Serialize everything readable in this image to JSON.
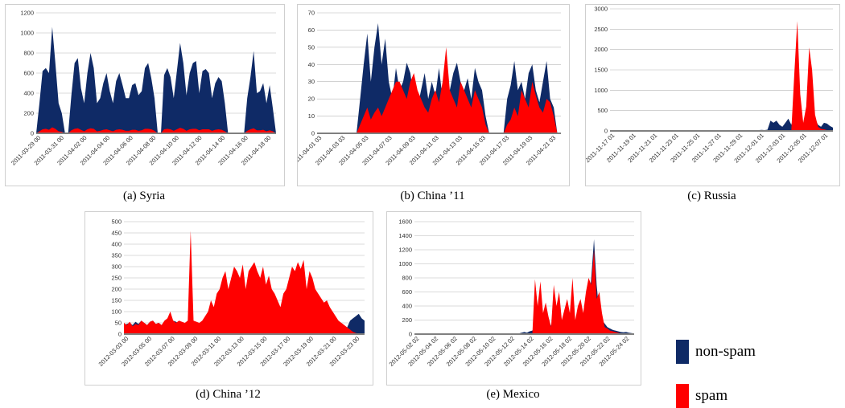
{
  "colors": {
    "non_spam": "#0f2a66",
    "spam": "#ff0000",
    "grid": "#b8b8b8",
    "axis": "#808080"
  },
  "legend": {
    "non_spam_label": "non-spam",
    "spam_label": "spam"
  },
  "chart_data": [
    {
      "type": "area",
      "caption": "(a)  Syria",
      "ylim": [
        0,
        1200
      ],
      "yticks": [
        "0",
        "200",
        "400",
        "600",
        "800",
        "1000",
        "1200"
      ],
      "xticks": [
        "2011-03-29 00",
        "2011-03-31 00",
        "2011-04-02 00",
        "2011-04-04 00",
        "2011-04-06 00",
        "2011-04-08 00",
        "2011-04-10 00",
        "2011-04-12 00",
        "2011-04-14 00",
        "2011-04-16 00",
        "2011-04-18 00"
      ],
      "series": [
        {
          "name": "non-spam",
          "values": [
            0,
            300,
            620,
            650,
            600,
            1060,
            700,
            300,
            200,
            0,
            0,
            380,
            700,
            750,
            450,
            300,
            600,
            800,
            650,
            300,
            350,
            500,
            600,
            420,
            300,
            520,
            600,
            480,
            350,
            350,
            480,
            500,
            380,
            420,
            650,
            700,
            550,
            350,
            0,
            0,
            580,
            650,
            560,
            350,
            620,
            900,
            700,
            380,
            600,
            700,
            720,
            400,
            620,
            640,
            600,
            350,
            500,
            560,
            520,
            300,
            0,
            0,
            0,
            0,
            0,
            0,
            350,
            560,
            820,
            400,
            420,
            500,
            300,
            480,
            250,
            0
          ]
        },
        {
          "name": "spam",
          "values": [
            0,
            20,
            40,
            45,
            35,
            60,
            45,
            20,
            15,
            0,
            0,
            30,
            45,
            50,
            35,
            20,
            40,
            50,
            45,
            20,
            25,
            35,
            40,
            30,
            20,
            35,
            40,
            35,
            25,
            25,
            35,
            35,
            25,
            30,
            45,
            45,
            40,
            25,
            0,
            0,
            40,
            45,
            40,
            25,
            40,
            55,
            45,
            25,
            40,
            45,
            45,
            30,
            40,
            40,
            40,
            25,
            35,
            40,
            35,
            20,
            0,
            0,
            0,
            0,
            0,
            0,
            25,
            40,
            50,
            30,
            30,
            35,
            20,
            30,
            20,
            0
          ]
        }
      ]
    },
    {
      "type": "area",
      "caption": "(b)  China ’11",
      "ylim": [
        0,
        70
      ],
      "yticks": [
        "0",
        "10",
        "20",
        "30",
        "40",
        "50",
        "60",
        "70"
      ],
      "xticks": [
        "2011-04-01 03",
        "2011-04-03 03",
        "2011-04-05 03",
        "2011-04-07 03",
        "2011-04-09 03",
        "2011-04-11 03",
        "2011-04-13 03",
        "2011-04-15 03",
        "2011-04-17 03",
        "2011-04-19 03",
        "2011-04-21 03"
      ],
      "series": [
        {
          "name": "non-spam",
          "values": [
            0,
            0,
            0,
            0,
            0,
            0,
            0,
            0,
            0,
            0,
            0,
            0,
            20,
            40,
            58,
            30,
            50,
            64,
            40,
            55,
            30,
            20,
            38,
            25,
            30,
            41,
            35,
            20,
            15,
            25,
            35,
            20,
            30,
            22,
            38,
            20,
            32,
            25,
            35,
            41,
            30,
            25,
            32,
            20,
            38,
            30,
            25,
            10,
            0,
            0,
            0,
            0,
            0,
            20,
            28,
            42,
            25,
            30,
            20,
            35,
            40,
            25,
            18,
            30,
            42,
            20,
            15,
            0,
            0
          ]
        },
        {
          "name": "spam",
          "values": [
            0,
            0,
            0,
            0,
            0,
            0,
            0,
            0,
            0,
            0,
            0,
            0,
            5,
            10,
            15,
            8,
            12,
            15,
            10,
            15,
            20,
            25,
            30,
            30,
            25,
            20,
            30,
            35,
            25,
            20,
            15,
            12,
            20,
            25,
            18,
            30,
            50,
            25,
            20,
            15,
            30,
            25,
            20,
            15,
            25,
            20,
            15,
            5,
            0,
            0,
            0,
            0,
            0,
            5,
            8,
            15,
            10,
            25,
            20,
            15,
            30,
            22,
            15,
            12,
            20,
            18,
            10,
            0,
            0
          ]
        }
      ]
    },
    {
      "type": "area",
      "caption": "(c)  Russia",
      "ylim": [
        0,
        3000
      ],
      "yticks": [
        "0",
        "500",
        "1000",
        "1500",
        "2000",
        "2500",
        "3000"
      ],
      "xticks": [
        "2011-11-17 01",
        "2011-11-19 01",
        "2011-11-21 01",
        "2011-11-23 01",
        "2011-11-25 01",
        "2011-11-27 01",
        "2011-11-29 01",
        "2011-12-01 01",
        "2011-12-03 01",
        "2011-12-05 01",
        "2011-12-07 01"
      ],
      "series": [
        {
          "name": "non-spam",
          "values": [
            10,
            10,
            10,
            10,
            10,
            10,
            10,
            10,
            10,
            10,
            10,
            10,
            10,
            10,
            10,
            10,
            10,
            10,
            10,
            10,
            10,
            10,
            10,
            10,
            10,
            10,
            10,
            10,
            10,
            10,
            10,
            10,
            10,
            10,
            10,
            10,
            10,
            10,
            10,
            10,
            10,
            10,
            10,
            10,
            10,
            10,
            15,
            20,
            15,
            15,
            20,
            25,
            20,
            30,
            250,
            200,
            250,
            150,
            100,
            200,
            300,
            150,
            400,
            800,
            300,
            150,
            200,
            1200,
            400,
            300,
            150,
            100,
            200,
            180,
            120,
            80
          ]
        },
        {
          "name": "spam",
          "values": [
            0,
            0,
            0,
            0,
            0,
            0,
            0,
            0,
            0,
            0,
            0,
            0,
            0,
            0,
            0,
            0,
            0,
            0,
            0,
            0,
            0,
            0,
            0,
            0,
            0,
            0,
            0,
            0,
            0,
            0,
            0,
            0,
            0,
            0,
            0,
            0,
            0,
            0,
            0,
            0,
            0,
            0,
            0,
            0,
            0,
            0,
            0,
            0,
            0,
            0,
            0,
            0,
            0,
            0,
            0,
            0,
            0,
            0,
            0,
            0,
            0,
            0,
            1400,
            2700,
            900,
            200,
            600,
            2050,
            1500,
            400,
            100,
            50,
            40,
            20,
            10,
            5
          ]
        }
      ]
    },
    {
      "type": "area",
      "caption": "(d)  China ’12",
      "ylim": [
        0,
        500
      ],
      "yticks": [
        "0",
        "50",
        "100",
        "150",
        "200",
        "250",
        "300",
        "350",
        "400",
        "450",
        "500"
      ],
      "xticks": [
        "2012-03-03 00",
        "2012-03-05 00",
        "2012-03-07 00",
        "2012-03-09 00",
        "2012-03-11 00",
        "2012-03-13 00",
        "2012-03-15 00",
        "2012-03-17 00",
        "2012-03-19 00",
        "2012-03-21 00",
        "2012-03-23 00"
      ],
      "series": [
        {
          "name": "non-spam",
          "values": [
            40,
            45,
            50,
            40,
            55,
            45,
            60,
            50,
            40,
            55,
            60,
            45,
            50,
            40,
            55,
            45,
            50,
            60,
            55,
            45,
            50,
            40,
            55,
            60,
            45,
            50,
            40,
            35,
            45,
            50,
            55,
            40,
            45,
            60,
            50,
            45,
            55,
            50,
            45,
            40,
            35,
            30,
            45,
            50,
            40,
            35,
            45,
            40,
            50,
            45,
            55,
            40,
            30,
            20,
            25,
            50,
            60,
            50,
            55,
            45,
            40,
            50,
            60,
            55,
            45,
            50,
            30,
            40,
            55,
            60,
            65,
            70,
            75,
            50,
            60,
            40,
            20,
            30,
            60,
            70,
            80,
            90,
            70,
            60
          ]
        },
        {
          "name": "spam",
          "values": [
            50,
            40,
            55,
            35,
            45,
            40,
            60,
            50,
            40,
            55,
            60,
            45,
            50,
            40,
            60,
            70,
            100,
            60,
            50,
            60,
            55,
            50,
            60,
            460,
            60,
            55,
            50,
            60,
            80,
            100,
            150,
            120,
            180,
            200,
            250,
            280,
            200,
            250,
            300,
            280,
            250,
            310,
            200,
            280,
            300,
            320,
            280,
            250,
            300,
            220,
            260,
            200,
            180,
            150,
            120,
            180,
            200,
            250,
            300,
            280,
            320,
            290,
            330,
            200,
            280,
            250,
            200,
            180,
            160,
            140,
            150,
            120,
            100,
            80,
            60,
            50,
            40,
            30,
            20,
            10,
            5,
            0,
            0,
            0
          ]
        }
      ]
    },
    {
      "type": "area",
      "caption": "(e)  Mexico",
      "ylim": [
        0,
        1600
      ],
      "yticks": [
        "0",
        "200",
        "400",
        "600",
        "800",
        "1000",
        "1200",
        "1400",
        "1600"
      ],
      "xticks": [
        "2012-05-02 02",
        "2012-05-04 02",
        "2012-05-06 02",
        "2012-05-08 02",
        "2012-05-10 02",
        "2012-05-12 02",
        "2012-05-14 02",
        "2012-05-16 02",
        "2012-05-18 02",
        "2012-05-20 02",
        "2012-05-22 02",
        "2012-05-24 02"
      ],
      "series": [
        {
          "name": "non-spam",
          "values": [
            10,
            10,
            10,
            10,
            10,
            10,
            10,
            10,
            10,
            10,
            10,
            10,
            10,
            10,
            10,
            10,
            10,
            10,
            10,
            10,
            10,
            10,
            10,
            10,
            10,
            10,
            10,
            10,
            10,
            10,
            10,
            10,
            10,
            10,
            10,
            10,
            10,
            10,
            10,
            10,
            20,
            30,
            20,
            40,
            50,
            100,
            150,
            80,
            120,
            250,
            200,
            120,
            150,
            180,
            200,
            100,
            120,
            150,
            80,
            100,
            150,
            200,
            180,
            100,
            300,
            400,
            800,
            1350,
            700,
            300,
            200,
            150,
            100,
            80,
            60,
            50,
            40,
            30,
            25,
            30,
            20,
            15,
            10
          ]
        },
        {
          "name": "spam",
          "values": [
            0,
            0,
            0,
            0,
            0,
            0,
            0,
            0,
            0,
            0,
            0,
            0,
            0,
            0,
            0,
            0,
            0,
            0,
            0,
            0,
            0,
            0,
            0,
            0,
            0,
            0,
            0,
            0,
            0,
            0,
            0,
            0,
            0,
            0,
            0,
            0,
            0,
            0,
            0,
            0,
            0,
            0,
            0,
            0,
            0,
            780,
            400,
            750,
            300,
            450,
            250,
            100,
            700,
            400,
            600,
            200,
            350,
            500,
            300,
            800,
            200,
            400,
            500,
            300,
            600,
            800,
            700,
            1200,
            500,
            600,
            300,
            100,
            80,
            50,
            40,
            30,
            20,
            10,
            5,
            0,
            0,
            0,
            0
          ]
        }
      ]
    }
  ]
}
